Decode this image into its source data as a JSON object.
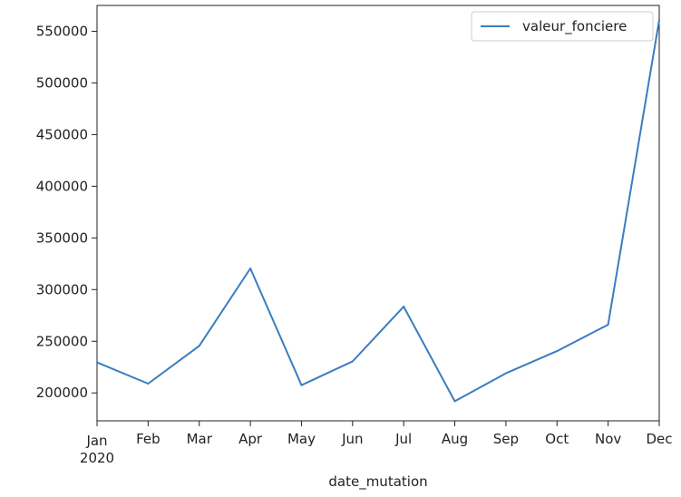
{
  "chart_data": {
    "type": "line",
    "x": [
      "2020-01",
      "2020-02",
      "2020-03",
      "2020-04",
      "2020-05",
      "2020-06",
      "2020-07",
      "2020-08",
      "2020-09",
      "2020-10",
      "2020-11",
      "2020-12"
    ],
    "x_tick_labels": [
      "Jan",
      "Feb",
      "Mar",
      "Apr",
      "May",
      "Jun",
      "Jul",
      "Aug",
      "Sep",
      "Oct",
      "Nov",
      "Dec"
    ],
    "x_year_label": "2020",
    "series": [
      {
        "name": "valeur_fonciere",
        "color": "#3a7dbf",
        "values": [
          229500,
          209000,
          245500,
          320500,
          207500,
          230500,
          283500,
          192000,
          219000,
          240500,
          266000,
          561000
        ]
      }
    ],
    "xlabel": "date_mutation",
    "ylabel": "",
    "ylim": [
      173000,
      575000
    ],
    "y_ticks": [
      200000,
      250000,
      300000,
      350000,
      400000,
      450000,
      500000,
      550000
    ],
    "grid": false,
    "legend_placement": "top-right"
  }
}
